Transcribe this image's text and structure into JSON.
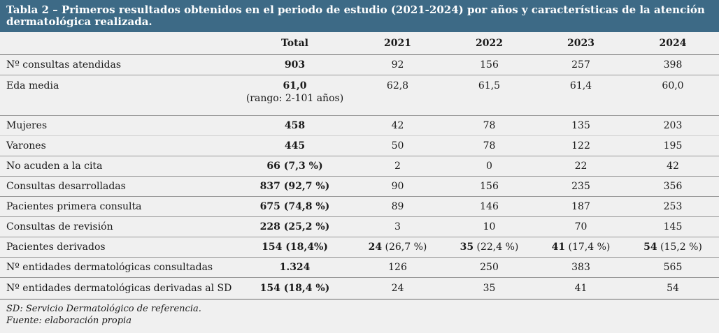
{
  "title": "Tabla 2 – Primeros resultados obtenidos en el periodo de estudio (2021-2024) por años y características de la atención dermatológica realizada.",
  "headers": [
    "",
    "Total",
    "2021",
    "2022",
    "2023",
    "2024"
  ],
  "rows": [
    {
      "label": "Nº consultas atendidas",
      "total": "903",
      "total_extra": "",
      "y2021": "92",
      "y2022": "156",
      "y2023": "257",
      "y2024": "398"
    },
    {
      "label": "Eda media",
      "total": "61,0",
      "total_extra": "(rango: 2-101 años)",
      "y2021": "62,8",
      "y2022": "61,5",
      "y2023": "61,4",
      "y2024": "60,0"
    },
    {
      "label": "Mujeres",
      "total": "458",
      "total_extra": "",
      "y2021": "42",
      "y2022": "78",
      "y2023": "135",
      "y2024": "203"
    },
    {
      "label": "Varones",
      "total": "445",
      "total_extra": "",
      "y2021": "50",
      "y2022": "78",
      "y2023": "122",
      "y2024": "195"
    },
    {
      "label": "No acuden a la cita",
      "total": "66",
      "total_extra": " (7,3 %)",
      "y2021": "2",
      "y2022": "0",
      "y2023": "22",
      "y2024": "42"
    },
    {
      "label": "Consultas desarrolladas",
      "total": "837",
      "total_extra": " (92,7 %)",
      "y2021": "90",
      "y2022": "156",
      "y2023": "235",
      "y2024": "356"
    },
    {
      "label": "Pacientes primera consulta",
      "total": "675",
      "total_extra": " (74,8 %)",
      "y2021": "89",
      "y2022": "146",
      "y2023": "187",
      "y2024": "253"
    },
    {
      "label": "Consultas de revisión",
      "total": "228",
      "total_extra": " (25,2 %)",
      "y2021": "3",
      "y2022": "10",
      "y2023": "70",
      "y2024": "145"
    },
    {
      "label": "Pacientes derivados",
      "total": "154",
      "total_extra": " (18,4%)",
      "y2021": "24",
      "y2021_extra": " (26,7 %)",
      "y2022": "35",
      "y2022_extra": " (22,4 %)",
      "y2023": "41",
      "y2023_extra": " (17,4 %)",
      "y2024": "54",
      "y2024_extra": " (15,2 %)"
    },
    {
      "label": "Nº entidades dermatológicas consultadas",
      "total": "1.324",
      "total_extra": "",
      "y2021": "126",
      "y2022": "250",
      "y2023": "383",
      "y2024": "565"
    },
    {
      "label": "Nº entidades dermatológicas derivadas al SD",
      "total": "154",
      "total_extra": " (18,4 %)",
      "y2021": "24",
      "y2022": "35",
      "y2023": "41",
      "y2024": "54"
    }
  ],
  "footnotes": {
    "abbrev": "SD: Servicio Dermatológico de referencia.",
    "source": "Fuente: elaboración propia"
  }
}
